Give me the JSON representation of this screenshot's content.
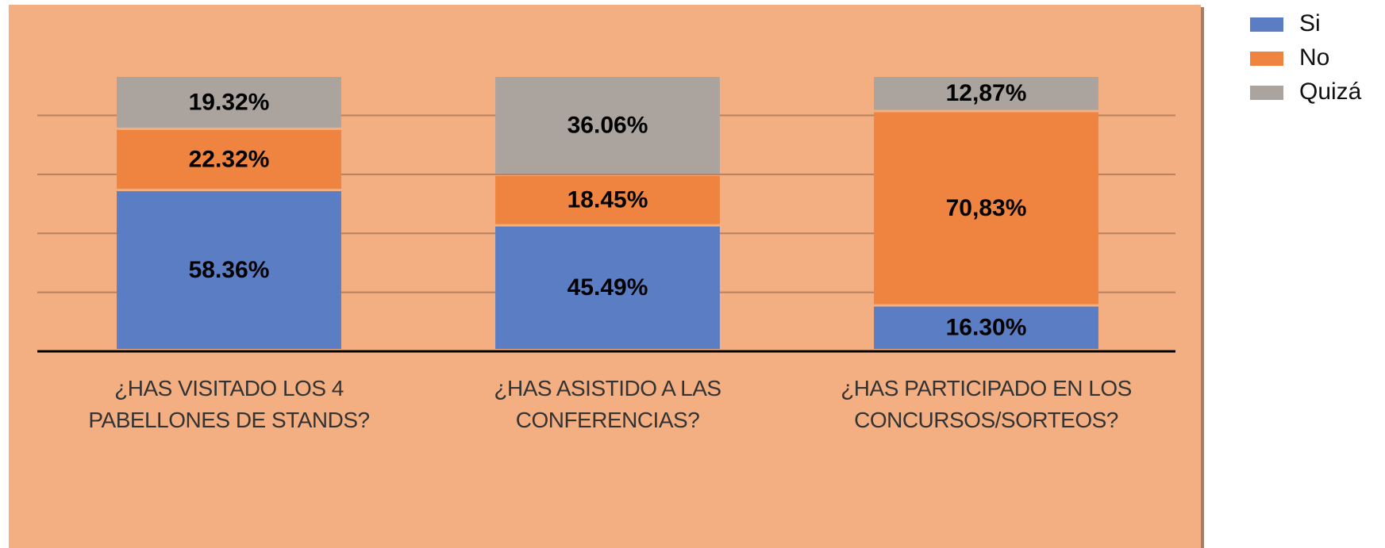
{
  "chart_data": {
    "type": "stacked_bar",
    "categories": [
      "¿HAS VISITADO LOS 4 PABELLONES DE STANDS?",
      "¿HAS ASISTIDO A LAS CONFERENCIAS?",
      "¿HAS PARTICIPADO EN LOS CONCURSOS/SORTEOS?"
    ],
    "series": [
      {
        "name": "Si",
        "color": "#5b7dc4",
        "values": [
          58.36,
          45.49,
          16.3
        ],
        "value_labels": [
          "58.36%",
          "45.49%",
          "16.30%"
        ]
      },
      {
        "name": "No",
        "color": "#ef8440",
        "values": [
          22.32,
          18.45,
          70.83
        ],
        "value_labels": [
          "22.32%",
          "18.45%",
          "70,83%"
        ]
      },
      {
        "name": "Quizá",
        "color": "#aba39e",
        "values": [
          19.32,
          36.06,
          12.87
        ],
        "value_labels": [
          "19.32%",
          "36.06%",
          "12,87%"
        ]
      }
    ],
    "ylim": [
      0,
      100
    ],
    "yticks": [
      21.5,
      43,
      64.5,
      86
    ],
    "grid": true,
    "legend": "top-right"
  }
}
